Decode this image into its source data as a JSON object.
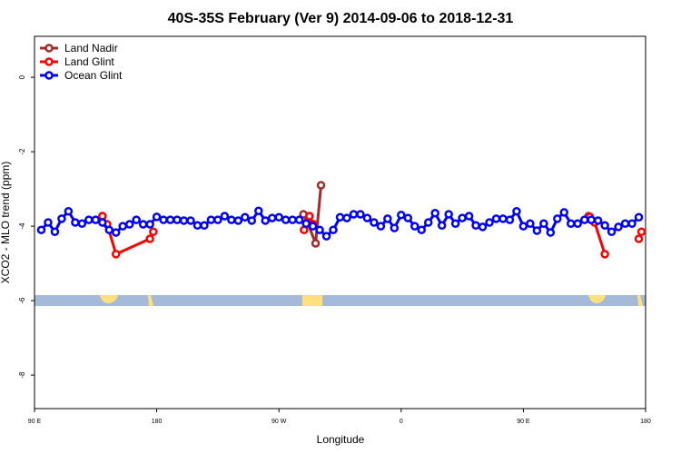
{
  "chart_data": {
    "type": "line",
    "title": "40S-35S February (Ver 9)   2014-09-06 to 2018-12-31",
    "x_label": "Longitude",
    "y_label": "XCO2 - MLO trend (ppm)",
    "xlim": [
      90,
      540
    ],
    "xticks": [
      {
        "value": 90,
        "label": "90 E"
      },
      180,
      {
        "value": 270,
        "label": "90 W"
      },
      {
        "value": 360,
        "label": "0"
      },
      {
        "value": 450,
        "label": "90 E"
      },
      {
        "value": 540,
        "label": "180"
      }
    ],
    "ylim": [
      -8.9,
      1.1
    ],
    "yticks": [
      0,
      -2,
      -4,
      -6,
      -8
    ],
    "legend": "top-left",
    "series": [
      {
        "name": "Land Nadir",
        "color": "#a52a2a",
        "x": [
          140,
          null,
          288,
          291,
          297,
          301,
          null,
          498
        ],
        "values": [
          -3.73,
          null,
          -3.68,
          -3.9,
          -4.46,
          -2.9,
          null,
          -3.73
        ]
      },
      {
        "name": "Land Glint",
        "color": "#ff0000",
        "x": [
          140,
          143.5,
          150,
          175,
          177.5,
          null,
          288.5,
          292.5,
          295.5,
          null,
          499,
          502.5,
          510,
          null,
          535,
          537
        ],
        "values": [
          -3.73,
          -3.95,
          -4.75,
          -4.34,
          -4.15,
          null,
          -4.1,
          -3.73,
          -3.95,
          null,
          -3.75,
          -3.9,
          -4.75,
          null,
          -4.34,
          -4.15
        ]
      },
      {
        "name": "Ocean Glint",
        "color": "#0000ff",
        "x": [
          95,
          100,
          105,
          110,
          115,
          120,
          125,
          130,
          135,
          140,
          145,
          150,
          155,
          160,
          165,
          170,
          175,
          180,
          185,
          190,
          195,
          200,
          205,
          210,
          215,
          220,
          225,
          230,
          235,
          240,
          245,
          250,
          255,
          260,
          265,
          270,
          275,
          280,
          285,
          290,
          295,
          300,
          305,
          310,
          315,
          320,
          325,
          330,
          335,
          340,
          345,
          350,
          355,
          360,
          365,
          370,
          375,
          380,
          385,
          390,
          395,
          400,
          405,
          410,
          415,
          420,
          425,
          430,
          435,
          440,
          445,
          450,
          455,
          460,
          465,
          470,
          475,
          480,
          485,
          490,
          495,
          500,
          505,
          510,
          515,
          520,
          525,
          530,
          535
        ],
        "values": [
          -4.1,
          -3.9,
          -4.15,
          -3.8,
          -3.6,
          -3.9,
          -3.93,
          -3.83,
          -3.83,
          -3.9,
          -4.1,
          -4.17,
          -4.0,
          -3.95,
          -3.83,
          -3.95,
          -3.95,
          -3.75,
          -3.83,
          -3.83,
          -3.83,
          -3.85,
          -3.85,
          -3.98,
          -3.98,
          -3.83,
          -3.83,
          -3.73,
          -3.83,
          -3.85,
          -3.76,
          -3.85,
          -3.59,
          -3.85,
          -3.78,
          -3.76,
          -3.83,
          -3.83,
          -3.83,
          -3.93,
          -4.0,
          -4.1,
          -4.27,
          -4.1,
          -3.76,
          -3.78,
          -3.68,
          -3.68,
          -3.78,
          -3.9,
          -4.0,
          -3.8,
          -4.05,
          -3.7,
          -3.78,
          -4.0,
          -4.1,
          -3.9,
          -3.65,
          -3.98,
          -3.68,
          -3.93,
          -3.78,
          -3.73,
          -3.98,
          -4.02,
          -3.9,
          -3.8,
          -3.8,
          -3.83,
          -3.6,
          -4.0,
          -3.93,
          -4.12,
          -3.93,
          -4.17,
          -3.8,
          -3.63,
          -3.93,
          -3.93,
          -3.83,
          -3.83,
          -3.85,
          -3.98,
          -4.15,
          -4.02,
          -3.93,
          -3.93,
          -3.76
        ]
      }
    ]
  }
}
